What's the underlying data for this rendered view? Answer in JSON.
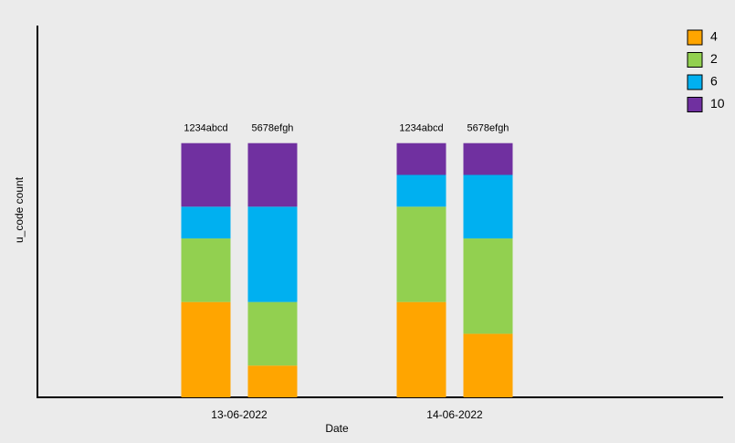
{
  "chart_data": {
    "type": "grouped_stacked_bar",
    "x_label": "Date",
    "y_label": "u_code count",
    "categories": [
      "13-06-2022",
      "14-06-2022"
    ],
    "subcategories": [
      "1234abcd",
      "5678efgh"
    ],
    "series": [
      {
        "name": "4",
        "color": "#ffa500",
        "values": [
          [
            3,
            1
          ],
          [
            3,
            2
          ]
        ]
      },
      {
        "name": "2",
        "color": "#92d050",
        "values": [
          [
            2,
            2
          ],
          [
            3,
            3
          ]
        ]
      },
      {
        "name": "6",
        "color": "#00b0f0",
        "values": [
          [
            1,
            3
          ],
          [
            1,
            2
          ]
        ]
      },
      {
        "name": "10",
        "color": "#7030a0",
        "values": [
          [
            2,
            2
          ],
          [
            1,
            1
          ]
        ]
      }
    ],
    "ylim": [
      0,
      11.7
    ],
    "legend": "top-right"
  }
}
